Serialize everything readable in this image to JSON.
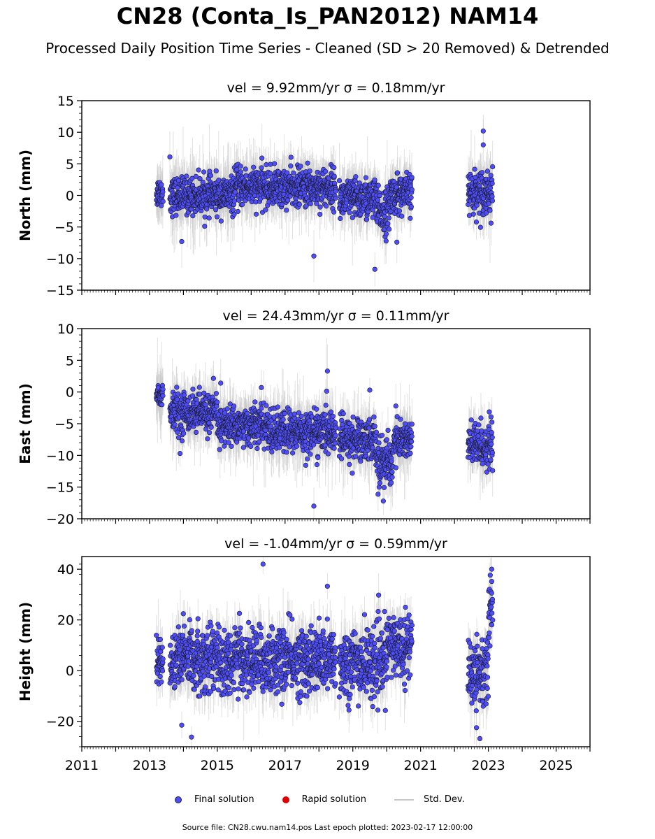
{
  "title": "CN28 (Conta_Is_PAN2012) NAM14",
  "subtitle": "Processed Daily Position Time Series - Cleaned (SD > 20 Removed) & Detrended",
  "legend": {
    "final": "Final solution",
    "rapid": "Rapid solution",
    "stddev": "Std. Dev."
  },
  "footer": "Source file: CN28.cwu.nam14.pos  Last epoch plotted: 2023-02-17 12:00:00",
  "colors": {
    "final": "#4d4dff",
    "rapid": "#e00000",
    "stddev": "#c8c8c8",
    "marker_edge": "#1a1a1a"
  },
  "chart_data": [
    {
      "type": "scatter",
      "panel": "north",
      "title": "vel = 9.92mm/yr   σ = 0.18mm/yr",
      "ylabel": "North (mm)",
      "xlim": [
        2011,
        2026
      ],
      "ylim": [
        -15,
        15
      ],
      "yticks": [
        -15,
        -10,
        -5,
        0,
        5,
        10,
        15
      ],
      "ytick_labels": [
        "−15",
        "−10",
        "−5",
        "0",
        "5",
        "10",
        "15"
      ],
      "series": [
        {
          "name": "Final solution",
          "segments": [
            {
              "start": 2013.2,
              "end": 2013.4,
              "mean": 0.5,
              "spread": 1.2
            },
            {
              "start": 2013.6,
              "end": 2015.5,
              "mean": 0.0,
              "spread": 1.4
            },
            {
              "start": 2015.5,
              "end": 2018.5,
              "mean": 1.3,
              "spread": 1.5
            },
            {
              "start": 2018.6,
              "end": 2019.7,
              "mean": -0.6,
              "spread": 1.6
            },
            {
              "start": 2019.7,
              "end": 2020.1,
              "mean": -2.5,
              "spread": 1.8
            },
            {
              "start": 2020.1,
              "end": 2020.75,
              "mean": 0.3,
              "spread": 1.5
            },
            {
              "start": 2022.4,
              "end": 2023.13,
              "mean": 0.6,
              "spread": 1.7
            }
          ],
          "outliers": [
            [
              2013.95,
              -7.3
            ],
            [
              2017.85,
              -9.6
            ],
            [
              2019.65,
              -11.7
            ],
            [
              2020.3,
              -7.4
            ],
            [
              2022.85,
              10.2
            ],
            [
              2022.85,
              8.0
            ],
            [
              2013.6,
              6.1
            ]
          ]
        }
      ]
    },
    {
      "type": "scatter",
      "panel": "east",
      "title": "vel = 24.43mm/yr   σ = 0.11mm/yr",
      "ylabel": "East (mm)",
      "xlim": [
        2011,
        2026
      ],
      "ylim": [
        -20,
        10
      ],
      "yticks": [
        -20,
        -15,
        -10,
        -5,
        0,
        5,
        10
      ],
      "ytick_labels": [
        "−20",
        "−15",
        "−10",
        "−5",
        "0",
        "5",
        "10"
      ],
      "series": [
        {
          "name": "Final solution",
          "segments": [
            {
              "start": 2013.2,
              "end": 2013.4,
              "mean": -0.5,
              "spread": 1.0
            },
            {
              "start": 2013.6,
              "end": 2015.0,
              "mean": -3.2,
              "spread": 1.5
            },
            {
              "start": 2015.0,
              "end": 2016.5,
              "mean": -5.3,
              "spread": 1.5
            },
            {
              "start": 2016.5,
              "end": 2018.5,
              "mean": -6.3,
              "spread": 1.7
            },
            {
              "start": 2018.6,
              "end": 2019.7,
              "mean": -7.5,
              "spread": 1.7
            },
            {
              "start": 2019.7,
              "end": 2020.2,
              "mean": -11.0,
              "spread": 2.0
            },
            {
              "start": 2020.2,
              "end": 2020.75,
              "mean": -7.5,
              "spread": 1.6
            },
            {
              "start": 2022.4,
              "end": 2023.13,
              "mean": -8.5,
              "spread": 1.8
            }
          ],
          "outliers": [
            [
              2018.25,
              3.3
            ],
            [
              2015.1,
              1.4
            ],
            [
              2016.3,
              0.7
            ],
            [
              2019.5,
              0.3
            ],
            [
              2017.85,
              -18.0
            ],
            [
              2019.9,
              -17.2
            ],
            [
              2013.9,
              -9.7
            ]
          ]
        }
      ]
    },
    {
      "type": "scatter",
      "panel": "height",
      "title": "vel = -1.04mm/yr   σ = 0.59mm/yr",
      "ylabel": "Height (mm)",
      "xlim": [
        2011,
        2026
      ],
      "ylim": [
        -30,
        45
      ],
      "yticks": [
        -20,
        0,
        20,
        40
      ],
      "ytick_labels": [
        "−20",
        "0",
        "20",
        "40"
      ],
      "xticks": [
        2011,
        2013,
        2015,
        2017,
        2019,
        2021,
        2023,
        2025
      ],
      "xtick_labels": [
        "2011",
        "2013",
        "2015",
        "2017",
        "2019",
        "2021",
        "2023",
        "2025"
      ],
      "series": [
        {
          "name": "Final solution",
          "segments": [
            {
              "start": 2013.2,
              "end": 2013.4,
              "mean": 3.0,
              "spread": 5.5
            },
            {
              "start": 2013.6,
              "end": 2015.0,
              "mean": 5.0,
              "spread": 6.5
            },
            {
              "start": 2015.0,
              "end": 2018.5,
              "mean": 4.0,
              "spread": 6.5
            },
            {
              "start": 2018.6,
              "end": 2020.0,
              "mean": 3.0,
              "spread": 7.0
            },
            {
              "start": 2020.0,
              "end": 2020.75,
              "mean": 10.0,
              "spread": 6.0
            },
            {
              "start": 2022.4,
              "end": 2023.0,
              "mean": 0.0,
              "spread": 7.0
            },
            {
              "start": 2023.0,
              "end": 2023.13,
              "mean": 22.0,
              "spread": 8.0
            }
          ],
          "outliers": [
            [
              2016.35,
              42.0
            ],
            [
              2018.25,
              33.3
            ],
            [
              2023.1,
              40.0
            ],
            [
              2023.1,
              35.2
            ],
            [
              2013.95,
              -21.5
            ],
            [
              2022.75,
              -26.8
            ],
            [
              2022.65,
              -22.5
            ]
          ]
        }
      ]
    }
  ]
}
